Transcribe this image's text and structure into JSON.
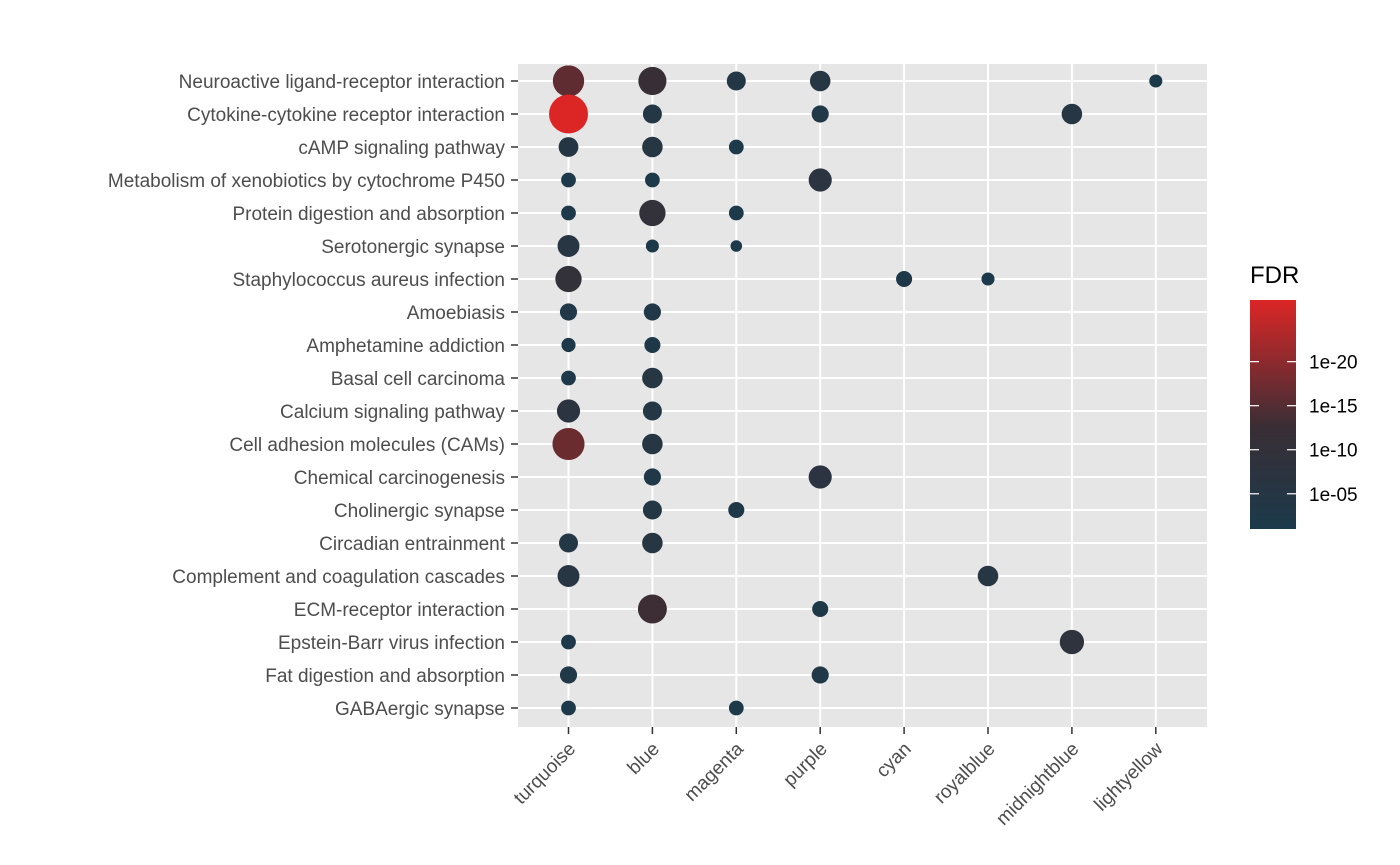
{
  "chart_data": {
    "type": "scatter",
    "x_categories": [
      "turquoise",
      "blue",
      "magenta",
      "purple",
      "cyan",
      "royalblue",
      "midnightblue",
      "lightyellow"
    ],
    "y_categories": [
      "Neuroactive ligand-receptor interaction",
      "Cytokine-cytokine receptor interaction",
      "cAMP signaling pathway",
      "Metabolism of xenobiotics by cytochrome P450",
      "Protein digestion and absorption",
      "Serotonergic synapse",
      "Staphylococcus aureus infection",
      "Amoebiasis",
      "Amphetamine addiction",
      "Basal cell carcinoma",
      "Calcium signaling pathway",
      "Cell adhesion molecules (CAMs)",
      "Chemical carcinogenesis",
      "Cholinergic synapse",
      "Circadian entrainment",
      "Complement and coagulation cascades",
      "ECM-receptor interaction",
      "Epstein-Barr virus infection",
      "Fat digestion and absorption",
      "GABAergic synapse"
    ],
    "points_note": "each point: [x_category, y_category, -log10(FDR)]",
    "points": [
      [
        "turquoise",
        "Neuroactive ligand-receptor interaction",
        16
      ],
      [
        "blue",
        "Neuroactive ligand-receptor interaction",
        12
      ],
      [
        "magenta",
        "Neuroactive ligand-receptor interaction",
        4
      ],
      [
        "purple",
        "Neuroactive ligand-receptor interaction",
        5
      ],
      [
        "lightyellow",
        "Neuroactive ligand-receptor interaction",
        1.5
      ],
      [
        "turquoise",
        "Cytokine-cytokine receptor interaction",
        28
      ],
      [
        "blue",
        "Cytokine-cytokine receptor interaction",
        4
      ],
      [
        "purple",
        "Cytokine-cytokine receptor interaction",
        3
      ],
      [
        "midnightblue",
        "Cytokine-cytokine receptor interaction",
        5
      ],
      [
        "turquoise",
        "cAMP signaling pathway",
        4.5
      ],
      [
        "blue",
        "cAMP signaling pathway",
        5
      ],
      [
        "magenta",
        "cAMP signaling pathway",
        2
      ],
      [
        "turquoise",
        "Metabolism of xenobiotics by cytochrome P450",
        2
      ],
      [
        "blue",
        "Metabolism of xenobiotics by cytochrome P450",
        2
      ],
      [
        "purple",
        "Metabolism of xenobiotics by cytochrome P450",
        7
      ],
      [
        "turquoise",
        "Protein digestion and absorption",
        2
      ],
      [
        "blue",
        "Protein digestion and absorption",
        10
      ],
      [
        "magenta",
        "Protein digestion and absorption",
        2
      ],
      [
        "turquoise",
        "Serotonergic synapse",
        6
      ],
      [
        "blue",
        "Serotonergic synapse",
        1.5
      ],
      [
        "magenta",
        "Serotonergic synapse",
        1.2
      ],
      [
        "turquoise",
        "Staphylococcus aureus infection",
        10
      ],
      [
        "cyan",
        "Staphylococcus aureus infection",
        2.5
      ],
      [
        "royalblue",
        "Staphylococcus aureus infection",
        1.5
      ],
      [
        "turquoise",
        "Amoebiasis",
        3
      ],
      [
        "blue",
        "Amoebiasis",
        3
      ],
      [
        "turquoise",
        "Amphetamine addiction",
        1.8
      ],
      [
        "blue",
        "Amphetamine addiction",
        2.5
      ],
      [
        "turquoise",
        "Basal cell carcinoma",
        2
      ],
      [
        "blue",
        "Basal cell carcinoma",
        5
      ],
      [
        "turquoise",
        "Calcium signaling pathway",
        7
      ],
      [
        "blue",
        "Calcium signaling pathway",
        4
      ],
      [
        "turquoise",
        "Cell adhesion molecules (CAMs)",
        17
      ],
      [
        "blue",
        "Cell adhesion molecules (CAMs)",
        5
      ],
      [
        "blue",
        "Chemical carcinogenesis",
        3
      ],
      [
        "purple",
        "Chemical carcinogenesis",
        7
      ],
      [
        "blue",
        "Cholinergic synapse",
        4
      ],
      [
        "magenta",
        "Cholinergic synapse",
        2.5
      ],
      [
        "turquoise",
        "Circadian entrainment",
        4
      ],
      [
        "blue",
        "Circadian entrainment",
        5
      ],
      [
        "turquoise",
        "Complement and coagulation cascades",
        6
      ],
      [
        "royalblue",
        "Complement and coagulation cascades",
        5
      ],
      [
        "blue",
        "ECM-receptor interaction",
        13
      ],
      [
        "purple",
        "ECM-receptor interaction",
        2.5
      ],
      [
        "turquoise",
        "Epstein-Barr virus infection",
        2
      ],
      [
        "midnightblue",
        "Epstein-Barr virus infection",
        8
      ],
      [
        "turquoise",
        "Fat digestion and absorption",
        3
      ],
      [
        "purple",
        "Fat digestion and absorption",
        3
      ],
      [
        "turquoise",
        "GABAergic synapse",
        2
      ],
      [
        "magenta",
        "GABAergic synapse",
        2
      ]
    ],
    "legend": {
      "title": "FDR",
      "ticks": [
        "1e-20",
        "1e-15",
        "1e-10",
        "1e-05"
      ],
      "tick_values": [
        20,
        15,
        10,
        5
      ],
      "range": [
        1,
        27
      ],
      "low_color": "#1b3a4b",
      "mid_color": "#3a2e35",
      "high_color": "#dc2626",
      "placement": "right"
    },
    "panel_background": "#e6e6e6",
    "grid": true
  }
}
